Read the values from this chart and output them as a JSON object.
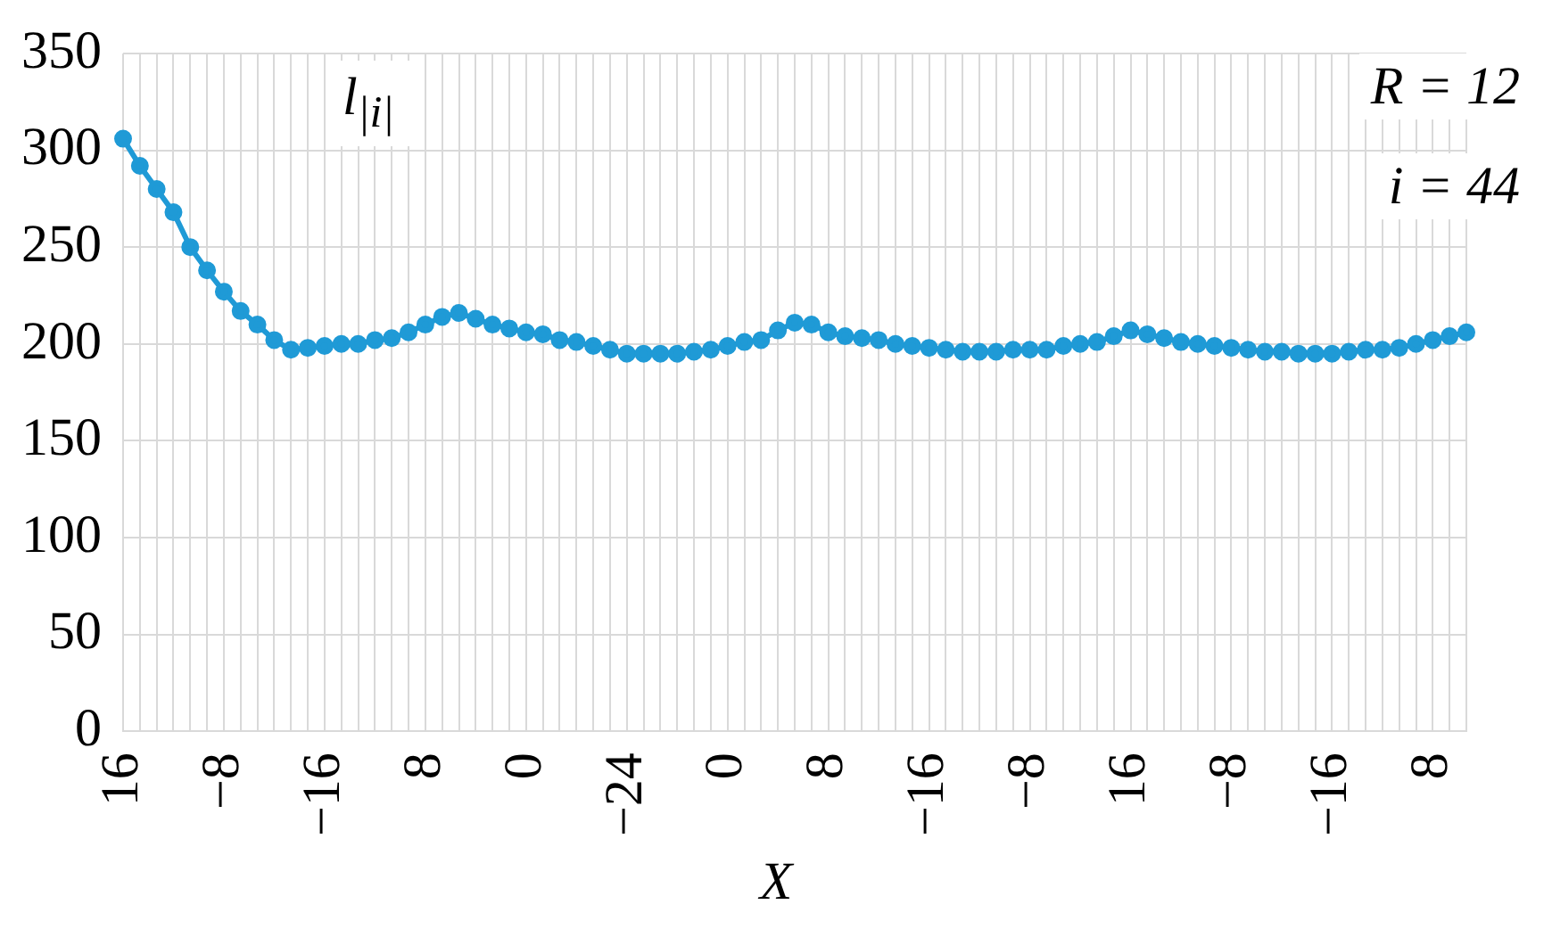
{
  "chart_data": {
    "type": "line",
    "xlabel": "X",
    "categories": [
      "16",
      null,
      null,
      null,
      null,
      null,
      "−8",
      null,
      null,
      null,
      null,
      null,
      "−16",
      null,
      null,
      null,
      null,
      null,
      "8",
      null,
      null,
      null,
      null,
      null,
      "0",
      null,
      null,
      null,
      null,
      null,
      "−24",
      null,
      null,
      null,
      null,
      null,
      "0",
      null,
      null,
      null,
      null,
      null,
      "8",
      null,
      null,
      null,
      null,
      null,
      "−16",
      null,
      null,
      null,
      null,
      null,
      "−8",
      null,
      null,
      null,
      null,
      null,
      "16",
      null,
      null,
      null,
      null,
      null,
      "−8",
      null,
      null,
      null,
      null,
      null,
      "−16",
      null,
      null,
      null,
      null,
      null,
      "8",
      null,
      null
    ],
    "series": [
      {
        "color": "#1f9ad6",
        "values": [
          306,
          292,
          280,
          268,
          250,
          238,
          227,
          217,
          210,
          202,
          197,
          198,
          199,
          200,
          200,
          202,
          203,
          206,
          210,
          214,
          216,
          213,
          210,
          208,
          206,
          205,
          202,
          201,
          199,
          197,
          195,
          195,
          195,
          195,
          196,
          197,
          199,
          201,
          202,
          207,
          211,
          210,
          206,
          204,
          203,
          202,
          200,
          199,
          198,
          197,
          196,
          196,
          196,
          197,
          197,
          197,
          199,
          200,
          201,
          204,
          207,
          205,
          203,
          201,
          200,
          199,
          198,
          197,
          196,
          196,
          195,
          195,
          195,
          196,
          197,
          197,
          198,
          200,
          202,
          204,
          206
        ]
      }
    ],
    "ylim": [
      0,
      350
    ],
    "yticks": [
      0,
      50,
      100,
      150,
      200,
      250,
      300,
      350
    ],
    "grid": true,
    "legend": false,
    "marker": "circle",
    "line_style": "solid",
    "annotations": [
      "l$_{|i|}$",
      "R = 12",
      "i = 44"
    ]
  }
}
